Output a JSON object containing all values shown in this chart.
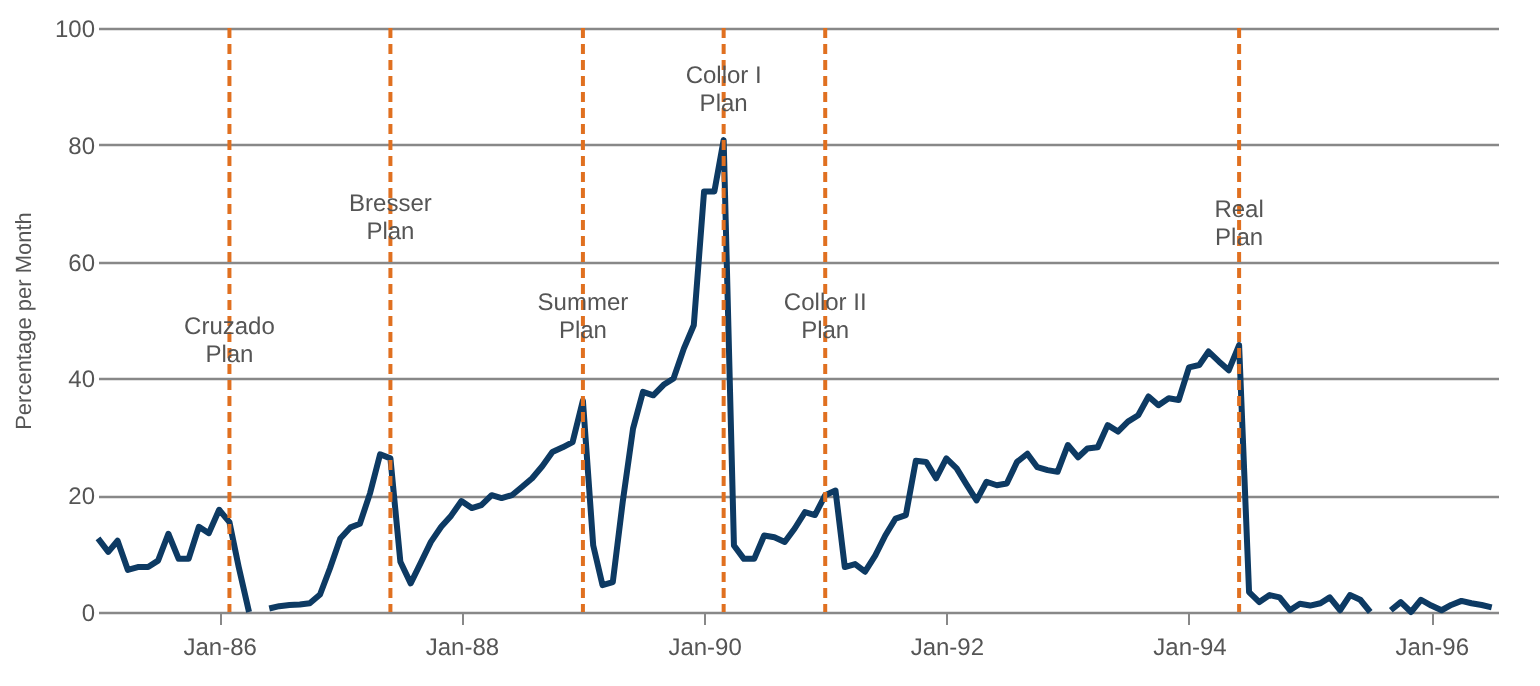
{
  "chart_data": {
    "type": "line",
    "ylabel": "Percentage per Month",
    "x": [
      "1985-01",
      "1985-02",
      "1985-03",
      "1985-04",
      "1985-05",
      "1985-06",
      "1985-07",
      "1985-08",
      "1985-09",
      "1985-10",
      "1985-11",
      "1985-12",
      "1986-01",
      "1986-02",
      "1986-03",
      "1986-04",
      "1986-05",
      "1986-06",
      "1986-07",
      "1986-08",
      "1986-09",
      "1986-10",
      "1986-11",
      "1986-12",
      "1987-01",
      "1987-02",
      "1987-03",
      "1987-04",
      "1987-05",
      "1987-06",
      "1987-07",
      "1987-08",
      "1987-09",
      "1987-10",
      "1987-11",
      "1987-12",
      "1988-01",
      "1988-02",
      "1988-03",
      "1988-04",
      "1988-05",
      "1988-06",
      "1988-07",
      "1988-08",
      "1988-09",
      "1988-10",
      "1988-11",
      "1988-12",
      "1989-01",
      "1989-02",
      "1989-03",
      "1989-04",
      "1989-05",
      "1989-06",
      "1989-07",
      "1989-08",
      "1989-09",
      "1989-10",
      "1989-11",
      "1989-12",
      "1990-01",
      "1990-02",
      "1990-03",
      "1990-04",
      "1990-05",
      "1990-06",
      "1990-07",
      "1990-08",
      "1990-09",
      "1990-10",
      "1990-11",
      "1990-12",
      "1991-01",
      "1991-02",
      "1991-03",
      "1991-04",
      "1991-05",
      "1991-06",
      "1991-07",
      "1991-08",
      "1991-09",
      "1991-10",
      "1991-11",
      "1991-12",
      "1992-01",
      "1992-02",
      "1992-03",
      "1992-04",
      "1992-05",
      "1992-06",
      "1992-07",
      "1992-08",
      "1992-09",
      "1992-10",
      "1992-11",
      "1992-12",
      "1993-01",
      "1993-02",
      "1993-03",
      "1993-04",
      "1993-05",
      "1993-06",
      "1993-07",
      "1993-08",
      "1993-09",
      "1993-10",
      "1993-11",
      "1993-12",
      "1994-01",
      "1994-02",
      "1994-03",
      "1994-04",
      "1994-05",
      "1994-06",
      "1994-07",
      "1994-08",
      "1994-09",
      "1994-10",
      "1994-11",
      "1994-12",
      "1995-01",
      "1995-02",
      "1995-03",
      "1995-04",
      "1995-05",
      "1995-06",
      "1995-07",
      "1995-08",
      "1995-09",
      "1995-10",
      "1995-11",
      "1995-12",
      "1996-01",
      "1996-02",
      "1996-03",
      "1996-04",
      "1996-05",
      "1996-06",
      "1996-07"
    ],
    "series": [
      {
        "color": "#0d3a63",
        "values": [
          12.6,
          10.3,
          12.2,
          7.2,
          7.7,
          7.7,
          8.8,
          13.4,
          9.1,
          9.1,
          14.6,
          13.5,
          17.5,
          15.4,
          7.7,
          0,
          null,
          0.6,
          1,
          1.2,
          1.3,
          1.5,
          3,
          7.5,
          12.6,
          14.5,
          15.1,
          20.4,
          27,
          26.3,
          8.6,
          4.9,
          8.5,
          12,
          14.6,
          16.5,
          19,
          17.8,
          18.3,
          20,
          19.5,
          20,
          21.4,
          22.9,
          25,
          27.4,
          28.2,
          29.1,
          36.2,
          11.4,
          4.6,
          5.1,
          18.9,
          31.4,
          37.7,
          37.1,
          38.9,
          40,
          45.1,
          49.1,
          72,
          72,
          80.8,
          11.4,
          9.1,
          9.1,
          13.1,
          12.8,
          12,
          14.3,
          17.1,
          16.6,
          20,
          20.8,
          7.7,
          8.2,
          6.9,
          9.7,
          13.1,
          16,
          16.6,
          25.9,
          25.7,
          22.9,
          26.3,
          24.6,
          21.9,
          19.1,
          22.3,
          21.7,
          22,
          25.7,
          27.1,
          24.8,
          24.3,
          24,
          28.6,
          26.5,
          28,
          28.2,
          32,
          30.9,
          32.6,
          33.7,
          36.9,
          35.4,
          36.6,
          36.3,
          41.9,
          42.3,
          44.6,
          42.9,
          41.4,
          45.7,
          3.4,
          1.7,
          2.9,
          2.5,
          0.3,
          1.4,
          1.1,
          1.5,
          2.5,
          0.3,
          2.9,
          2.1,
          0,
          null,
          0.3,
          1.7,
          0,
          2.1,
          1.1,
          0.3,
          1.2,
          1.9,
          1.5,
          1.2,
          0.8
        ]
      }
    ],
    "xlim": [
      "1985-01",
      "1996-07-20"
    ],
    "xticks": [
      {
        "value": "1986-01",
        "label": "Jan-86"
      },
      {
        "value": "1988-01",
        "label": "Jan-88"
      },
      {
        "value": "1990-01",
        "label": "Jan-90"
      },
      {
        "value": "1992-01",
        "label": "Jan-92"
      },
      {
        "value": "1994-01",
        "label": "Jan-94"
      },
      {
        "value": "1996-01",
        "label": "Jan-96"
      }
    ],
    "ylim": [
      0,
      100
    ],
    "yticks": [
      0,
      20,
      40,
      60,
      80,
      100
    ],
    "grid": "y",
    "line_style": "solid",
    "marker": "none",
    "ref_lines": [
      {
        "axis": "x",
        "value": "1986-02",
        "color": "#e07020",
        "line_style": "dashed"
      },
      {
        "axis": "x",
        "value": "1987-06",
        "color": "#e07020",
        "line_style": "dashed"
      },
      {
        "axis": "x",
        "value": "1989-01",
        "color": "#e07020",
        "line_style": "dashed"
      },
      {
        "axis": "x",
        "value": "1990-03",
        "color": "#e07020",
        "line_style": "dashed"
      },
      {
        "axis": "x",
        "value": "1991-01",
        "color": "#e07020",
        "line_style": "dashed"
      },
      {
        "axis": "x",
        "value": "1994-06",
        "color": "#e07020",
        "line_style": "dashed"
      }
    ],
    "annotations": [
      {
        "text": "Cruzado Plan",
        "x": "1986-02",
        "y": 49
      },
      {
        "text": "Bresser Plan",
        "x": "1987-06",
        "y": 70
      },
      {
        "text": "Summer Plan",
        "x": "1989-01",
        "y": 53
      },
      {
        "text": "Collor I Plan",
        "x": "1990-03",
        "y": 92
      },
      {
        "text": "Collor II Plan",
        "x": "1991-01",
        "y": 53
      },
      {
        "text": "Real Plan",
        "x": "1994-06",
        "y": 69
      }
    ]
  }
}
